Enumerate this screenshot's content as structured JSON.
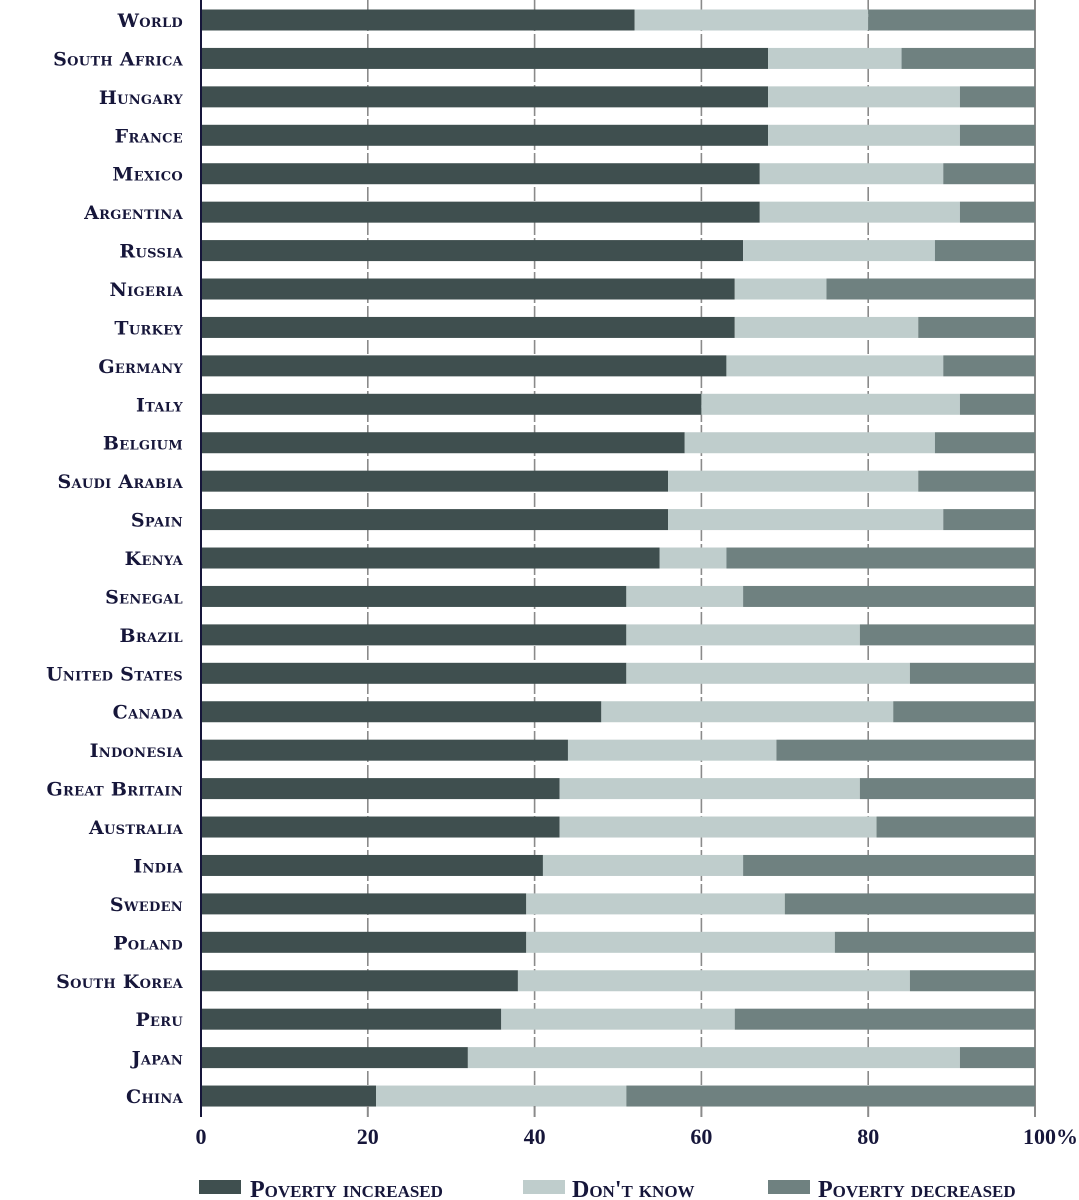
{
  "chart_data": {
    "type": "bar",
    "orientation": "horizontal",
    "stacked": true,
    "title": "",
    "xlabel": "",
    "ylabel": "",
    "xlim": [
      0,
      100
    ],
    "x_ticks": [
      "0",
      "20",
      "40",
      "60",
      "80",
      "100%"
    ],
    "x_tick_values": [
      0,
      20,
      40,
      60,
      80,
      100
    ],
    "grid": "vertical dashed at 20, 40, 60, 80",
    "legend_position": "bottom",
    "categories": [
      "World",
      "South Africa",
      "Hungary",
      "France",
      "Mexico",
      "Argentina",
      "Russia",
      "Nigeria",
      "Turkey",
      "Germany",
      "Italy",
      "Belgium",
      "Saudi Arabia",
      "Spain",
      "Kenya",
      "Senegal",
      "Brazil",
      "United States",
      "Canada",
      "Indonesia",
      "Great Britain",
      "Australia",
      "India",
      "Sweden",
      "Poland",
      "South Korea",
      "Peru",
      "Japan",
      "China"
    ],
    "series": [
      {
        "name": "Poverty increased",
        "color": "#3f4f4f",
        "values": [
          52,
          68,
          68,
          68,
          67,
          67,
          65,
          64,
          64,
          63,
          60,
          58,
          56,
          56,
          55,
          51,
          51,
          51,
          48,
          44,
          43,
          43,
          41,
          39,
          39,
          38,
          36,
          32,
          21
        ]
      },
      {
        "name": "Don't know",
        "color": "#bfcdcc",
        "values": [
          28,
          16,
          23,
          23,
          22,
          24,
          23,
          11,
          22,
          26,
          31,
          30,
          30,
          33,
          8,
          14,
          28,
          34,
          35,
          25,
          36,
          38,
          24,
          31,
          37,
          47,
          28,
          59,
          30
        ]
      },
      {
        "name": "Poverty decreased",
        "color": "#6f8180",
        "values": [
          20,
          16,
          9,
          9,
          11,
          9,
          12,
          25,
          14,
          11,
          9,
          12,
          14,
          11,
          37,
          35,
          21,
          15,
          17,
          31,
          21,
          19,
          35,
          30,
          24,
          15,
          36,
          9,
          49
        ]
      }
    ]
  }
}
